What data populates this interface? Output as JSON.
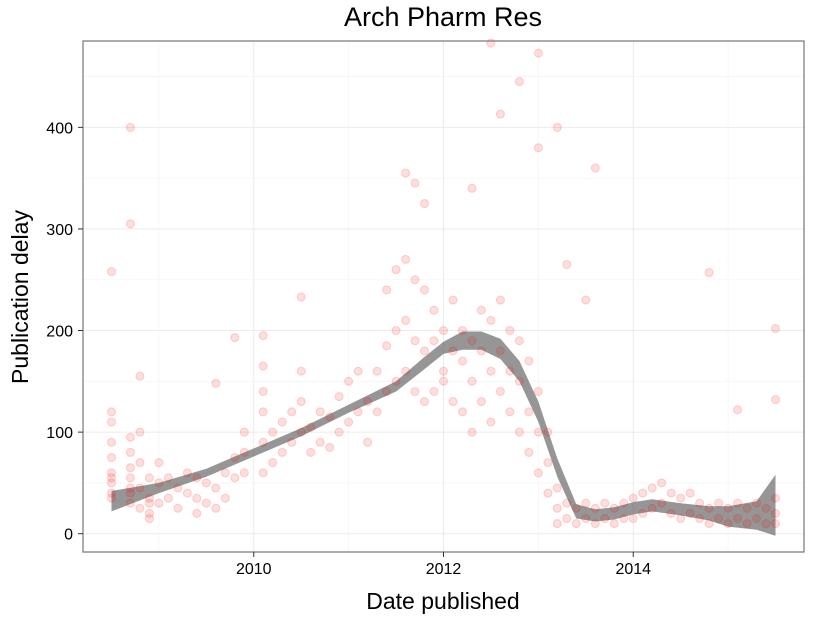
{
  "chart_data": {
    "type": "scatter",
    "title": "Arch Pharm Res",
    "xlabel": "Date published",
    "ylabel": "Publication delay",
    "xlim": [
      2008.2,
      2015.8
    ],
    "ylim": [
      -18,
      485
    ],
    "x_ticks": [
      2010,
      2012,
      2014
    ],
    "y_ticks": [
      0,
      100,
      200,
      300,
      400
    ],
    "grid": true,
    "point_color": "#ff0000",
    "point_opacity": 0.13,
    "smooth_color": "#555555",
    "smooth_opacity": 0.62,
    "series": [
      {
        "type": "scatter",
        "x": [
          2008.5,
          2008.5,
          2008.5,
          2008.5,
          2008.5,
          2008.5,
          2008.5,
          2008.5,
          2008.5,
          2008.7,
          2008.7,
          2008.7,
          2008.7,
          2008.7,
          2008.7,
          2008.7,
          2008.8,
          2008.8,
          2008.8,
          2008.8,
          2008.9,
          2008.9,
          2008.9,
          2008.9,
          2008.9,
          2009.0,
          2009.0,
          2009.0,
          2009.1,
          2009.1,
          2009.2,
          2009.2,
          2009.3,
          2009.3,
          2009.4,
          2009.4,
          2009.4,
          2009.5,
          2009.5,
          2009.6,
          2009.6,
          2009.7,
          2009.7,
          2009.8,
          2009.8,
          2009.9,
          2009.9,
          2009.9,
          2010.1,
          2010.1,
          2010.1,
          2010.1,
          2010.1,
          2010.1,
          2010.2,
          2010.2,
          2010.3,
          2010.3,
          2010.4,
          2010.4,
          2010.5,
          2010.5,
          2010.5,
          2010.6,
          2010.6,
          2010.7,
          2010.7,
          2010.8,
          2010.8,
          2010.9,
          2010.9,
          2011.0,
          2011.0,
          2011.1,
          2011.1,
          2011.2,
          2011.2,
          2011.3,
          2011.3,
          2011.4,
          2011.4,
          2011.4,
          2011.5,
          2011.5,
          2011.5,
          2011.6,
          2011.6,
          2011.6,
          2011.7,
          2011.7,
          2011.7,
          2011.8,
          2011.8,
          2011.8,
          2011.9,
          2011.9,
          2011.9,
          2012.0,
          2012.0,
          2012.0,
          2012.1,
          2012.1,
          2012.1,
          2012.2,
          2012.2,
          2012.2,
          2012.3,
          2012.3,
          2012.3,
          2012.4,
          2012.4,
          2012.4,
          2012.5,
          2012.5,
          2012.5,
          2012.6,
          2012.6,
          2012.6,
          2012.7,
          2012.7,
          2012.7,
          2012.8,
          2012.8,
          2012.8,
          2012.9,
          2012.9,
          2012.9,
          2013.0,
          2013.0,
          2013.0,
          2013.1,
          2013.1,
          2013.1,
          2013.2,
          2013.2,
          2013.2,
          2013.3,
          2013.3,
          2013.4,
          2013.4,
          2013.5,
          2013.5,
          2013.6,
          2013.6,
          2013.7,
          2013.7,
          2013.8,
          2013.8,
          2013.9,
          2013.9,
          2014.0,
          2014.0,
          2014.1,
          2014.1,
          2014.2,
          2014.2,
          2014.3,
          2014.3,
          2014.4,
          2014.4,
          2014.5,
          2014.5,
          2014.6,
          2014.6,
          2014.7,
          2014.7,
          2014.8,
          2014.8,
          2014.9,
          2014.9,
          2015.0,
          2015.0,
          2015.1,
          2015.1,
          2015.2,
          2015.2,
          2015.3,
          2015.3,
          2015.4,
          2015.4,
          2015.5,
          2015.5,
          2015.5,
          2008.7,
          2008.5,
          2008.7,
          2008.8,
          2009.6,
          2009.8,
          2010.5,
          2011.6,
          2011.7,
          2011.8,
          2012.3,
          2012.5,
          2012.6,
          2012.8,
          2013.0,
          2013.0,
          2013.2,
          2013.3,
          2013.5,
          2013.6,
          2014.8,
          2015.5,
          2015.5,
          2015.1
        ],
        "y": [
          40,
          60,
          75,
          90,
          110,
          55,
          120,
          35,
          50,
          30,
          45,
          65,
          80,
          40,
          55,
          95,
          25,
          45,
          70,
          100,
          20,
          35,
          55,
          15,
          30,
          30,
          50,
          70,
          35,
          55,
          25,
          45,
          40,
          60,
          20,
          35,
          55,
          30,
          50,
          25,
          45,
          35,
          60,
          55,
          75,
          60,
          80,
          100,
          60,
          90,
          120,
          140,
          165,
          195,
          70,
          100,
          80,
          110,
          90,
          120,
          100,
          130,
          160,
          80,
          105,
          90,
          120,
          85,
          115,
          100,
          135,
          110,
          150,
          120,
          160,
          90,
          130,
          120,
          160,
          140,
          185,
          240,
          150,
          200,
          260,
          160,
          210,
          270,
          140,
          190,
          250,
          130,
          180,
          240,
          140,
          190,
          220,
          150,
          200,
          160,
          130,
          180,
          230,
          120,
          170,
          200,
          100,
          150,
          190,
          130,
          180,
          220,
          110,
          160,
          210,
          140,
          180,
          230,
          120,
          160,
          200,
          100,
          150,
          190,
          80,
          120,
          170,
          60,
          100,
          140,
          40,
          70,
          100,
          10,
          25,
          45,
          15,
          30,
          10,
          25,
          15,
          30,
          10,
          25,
          15,
          30,
          10,
          25,
          15,
          30,
          15,
          35,
          20,
          40,
          25,
          45,
          30,
          50,
          20,
          40,
          15,
          35,
          20,
          40,
          15,
          30,
          10,
          25,
          15,
          30,
          10,
          25,
          15,
          30,
          10,
          25,
          15,
          30,
          10,
          25,
          10,
          20,
          35,
          400,
          258,
          305,
          155,
          148,
          193,
          233,
          355,
          345,
          325,
          340,
          483,
          413,
          445,
          473,
          380,
          400,
          265,
          230,
          360,
          257,
          202,
          132,
          122
        ]
      },
      {
        "type": "smooth",
        "x": [
          2008.5,
          2009.0,
          2009.5,
          2010.0,
          2010.5,
          2011.0,
          2011.5,
          2011.8,
          2012.0,
          2012.2,
          2012.4,
          2012.6,
          2012.8,
          2013.0,
          2013.2,
          2013.4,
          2013.6,
          2013.8,
          2014.0,
          2014.2,
          2014.5,
          2014.8,
          2015.0,
          2015.3,
          2015.5
        ],
        "y": [
          32,
          45,
          60,
          80,
          100,
          123,
          145,
          168,
          183,
          190,
          190,
          182,
          160,
          120,
          65,
          22,
          18,
          20,
          25,
          28,
          24,
          20,
          17,
          18,
          28
        ],
        "lower": [
          22,
          40,
          56,
          76,
          96,
          119,
          140,
          162,
          177,
          181,
          181,
          172,
          150,
          110,
          56,
          15,
          12,
          14,
          19,
          22,
          18,
          13,
          7,
          4,
          -2
        ],
        "upper": [
          42,
          50,
          64,
          84,
          104,
          127,
          150,
          174,
          189,
          199,
          199,
          192,
          170,
          130,
          74,
          29,
          24,
          26,
          31,
          34,
          30,
          27,
          27,
          32,
          58
        ]
      }
    ]
  }
}
